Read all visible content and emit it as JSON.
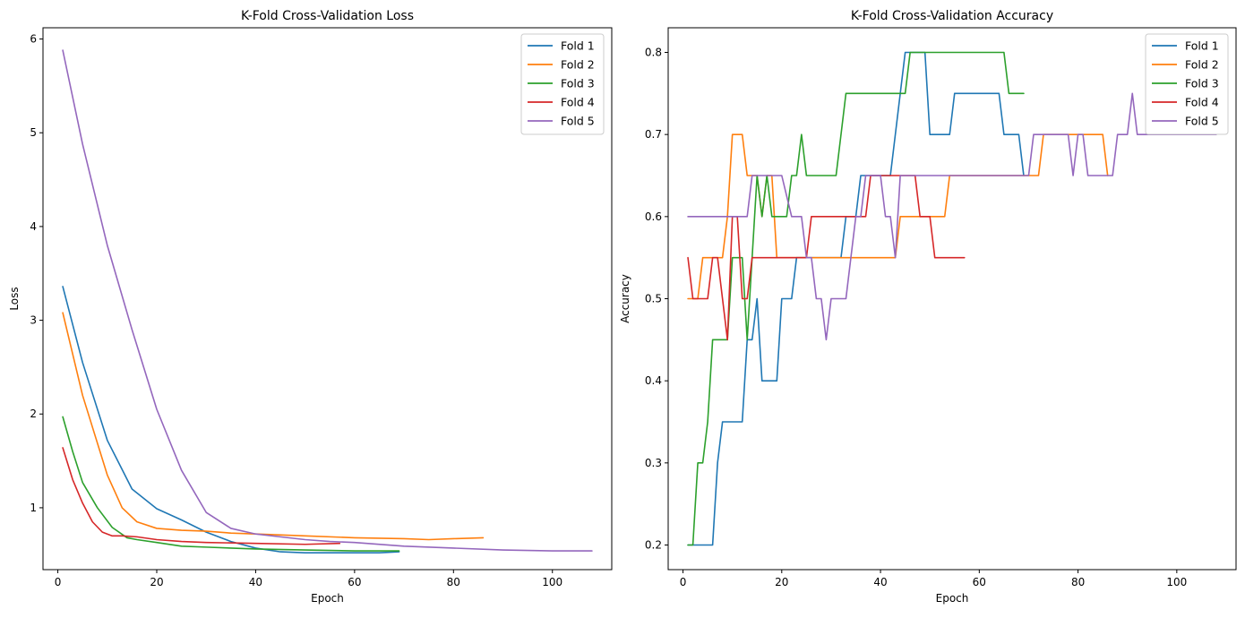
{
  "chart_data": [
    {
      "type": "line",
      "title": "K-Fold Cross-Validation Loss",
      "xlabel": "Epoch",
      "ylabel": "Loss",
      "xlim": [
        -3,
        112
      ],
      "ylim": [
        0.34,
        6.12
      ],
      "xticks": [
        0,
        20,
        40,
        60,
        80,
        100
      ],
      "yticks": [
        1,
        2,
        3,
        4,
        5,
        6
      ],
      "grid": false,
      "legend": "top-right",
      "series": [
        {
          "name": "Fold 1",
          "color": "#1f77b4",
          "x": [
            1,
            5,
            10,
            15,
            20,
            25,
            30,
            35,
            40,
            45,
            50,
            55,
            60,
            65,
            69
          ],
          "y": [
            3.36,
            2.55,
            1.72,
            1.2,
            0.99,
            0.87,
            0.74,
            0.64,
            0.57,
            0.53,
            0.52,
            0.52,
            0.52,
            0.52,
            0.53
          ]
        },
        {
          "name": "Fold 2",
          "color": "#ff7f0e",
          "x": [
            1,
            5,
            10,
            13,
            16,
            20,
            25,
            30,
            35,
            40,
            50,
            60,
            70,
            75,
            80,
            86
          ],
          "y": [
            3.08,
            2.2,
            1.35,
            1.0,
            0.85,
            0.78,
            0.76,
            0.75,
            0.73,
            0.72,
            0.7,
            0.68,
            0.67,
            0.66,
            0.67,
            0.68
          ]
        },
        {
          "name": "Fold 3",
          "color": "#2ca02c",
          "x": [
            1,
            3,
            5,
            8,
            11,
            14,
            16,
            20,
            25,
            30,
            40,
            50,
            60,
            65,
            69
          ],
          "y": [
            1.97,
            1.6,
            1.27,
            1.0,
            0.79,
            0.68,
            0.66,
            0.63,
            0.59,
            0.58,
            0.56,
            0.55,
            0.54,
            0.54,
            0.54
          ]
        },
        {
          "name": "Fold 4",
          "color": "#d62728",
          "x": [
            1,
            3,
            5,
            7,
            9,
            11,
            13,
            16,
            20,
            25,
            30,
            40,
            50,
            57
          ],
          "y": [
            1.64,
            1.3,
            1.05,
            0.85,
            0.74,
            0.7,
            0.7,
            0.69,
            0.66,
            0.64,
            0.63,
            0.62,
            0.61,
            0.62
          ]
        },
        {
          "name": "Fold 5",
          "color": "#9467bd",
          "x": [
            1,
            5,
            10,
            15,
            20,
            25,
            30,
            35,
            40,
            45,
            50,
            55,
            60,
            70,
            80,
            90,
            100,
            108
          ],
          "y": [
            5.88,
            4.88,
            3.8,
            2.9,
            2.05,
            1.4,
            0.95,
            0.78,
            0.72,
            0.69,
            0.66,
            0.64,
            0.63,
            0.59,
            0.57,
            0.55,
            0.54,
            0.54
          ]
        }
      ]
    },
    {
      "type": "line",
      "title": "K-Fold Cross-Validation Accuracy",
      "xlabel": "Epoch",
      "ylabel": "Accuracy",
      "xlim": [
        -3,
        112
      ],
      "ylim": [
        0.17,
        0.83
      ],
      "xticks": [
        0,
        20,
        40,
        60,
        80,
        100
      ],
      "yticks": [
        0.2,
        0.3,
        0.4,
        0.5,
        0.6,
        0.7,
        0.8
      ],
      "grid": false,
      "legend": "top-right",
      "series": [
        {
          "name": "Fold 1",
          "color": "#1f77b4",
          "x": [
            1,
            2,
            3,
            4,
            5,
            6,
            7,
            8,
            9,
            10,
            11,
            12,
            13,
            14,
            15,
            16,
            17,
            18,
            19,
            20,
            21,
            22,
            23,
            24,
            25,
            26,
            27,
            28,
            29,
            30,
            31,
            32,
            33,
            34,
            35,
            36,
            37,
            38,
            39,
            40,
            41,
            42,
            43,
            44,
            45,
            46,
            47,
            48,
            49,
            50,
            51,
            52,
            53,
            54,
            55,
            56,
            57,
            58,
            59,
            60,
            61,
            62,
            63,
            64,
            65,
            66,
            67,
            68,
            69
          ],
          "y": [
            0.2,
            0.2,
            0.2,
            0.2,
            0.2,
            0.2,
            0.3,
            0.35,
            0.35,
            0.35,
            0.35,
            0.35,
            0.45,
            0.45,
            0.5,
            0.4,
            0.4,
            0.4,
            0.4,
            0.5,
            0.5,
            0.5,
            0.55,
            0.55,
            0.55,
            0.55,
            0.55,
            0.55,
            0.55,
            0.55,
            0.55,
            0.55,
            0.6,
            0.6,
            0.6,
            0.65,
            0.65,
            0.65,
            0.65,
            0.65,
            0.65,
            0.65,
            0.7,
            0.75,
            0.8,
            0.8,
            0.8,
            0.8,
            0.8,
            0.7,
            0.7,
            0.7,
            0.7,
            0.7,
            0.75,
            0.75,
            0.75,
            0.75,
            0.75,
            0.75,
            0.75,
            0.75,
            0.75,
            0.75,
            0.7,
            0.7,
            0.7,
            0.7,
            0.65
          ]
        },
        {
          "name": "Fold 2",
          "color": "#ff7f0e",
          "x": [
            1,
            2,
            3,
            4,
            5,
            6,
            7,
            8,
            9,
            10,
            11,
            12,
            13,
            14,
            15,
            16,
            17,
            18,
            19,
            20,
            21,
            22,
            23,
            24,
            25,
            26,
            27,
            28,
            29,
            30,
            31,
            32,
            33,
            34,
            35,
            36,
            37,
            38,
            39,
            40,
            41,
            42,
            43,
            44,
            45,
            46,
            47,
            48,
            49,
            50,
            51,
            52,
            53,
            54,
            55,
            56,
            57,
            58,
            59,
            60,
            61,
            62,
            63,
            64,
            65,
            66,
            67,
            68,
            69,
            70,
            71,
            72,
            73,
            74,
            75,
            76,
            77,
            78,
            79,
            80,
            81,
            82,
            83,
            84,
            85,
            86
          ],
          "y": [
            0.5,
            0.5,
            0.5,
            0.55,
            0.55,
            0.55,
            0.55,
            0.55,
            0.6,
            0.7,
            0.7,
            0.7,
            0.65,
            0.65,
            0.65,
            0.6,
            0.65,
            0.65,
            0.55,
            0.55,
            0.55,
            0.55,
            0.55,
            0.55,
            0.55,
            0.55,
            0.55,
            0.55,
            0.55,
            0.55,
            0.55,
            0.55,
            0.55,
            0.55,
            0.55,
            0.55,
            0.55,
            0.55,
            0.55,
            0.55,
            0.55,
            0.55,
            0.55,
            0.6,
            0.6,
            0.6,
            0.6,
            0.6,
            0.6,
            0.6,
            0.6,
            0.6,
            0.6,
            0.65,
            0.65,
            0.65,
            0.65,
            0.65,
            0.65,
            0.65,
            0.65,
            0.65,
            0.65,
            0.65,
            0.65,
            0.65,
            0.65,
            0.65,
            0.65,
            0.65,
            0.65,
            0.65,
            0.7,
            0.7,
            0.7,
            0.7,
            0.7,
            0.7,
            0.7,
            0.7,
            0.7,
            0.7,
            0.7,
            0.7,
            0.7,
            0.65
          ]
        },
        {
          "name": "Fold 3",
          "color": "#2ca02c",
          "x": [
            1,
            2,
            3,
            4,
            5,
            6,
            7,
            8,
            9,
            10,
            11,
            12,
            13,
            14,
            15,
            16,
            17,
            18,
            19,
            20,
            21,
            22,
            23,
            24,
            25,
            26,
            27,
            28,
            29,
            30,
            31,
            32,
            33,
            34,
            35,
            36,
            37,
            38,
            39,
            40,
            41,
            42,
            43,
            44,
            45,
            46,
            47,
            48,
            49,
            50,
            51,
            52,
            53,
            54,
            55,
            56,
            57,
            58,
            59,
            60,
            61,
            62,
            63,
            64,
            65,
            66,
            67,
            68,
            69
          ],
          "y": [
            0.2,
            0.2,
            0.3,
            0.3,
            0.35,
            0.45,
            0.45,
            0.45,
            0.45,
            0.55,
            0.55,
            0.55,
            0.45,
            0.55,
            0.65,
            0.6,
            0.65,
            0.6,
            0.6,
            0.6,
            0.6,
            0.65,
            0.65,
            0.7,
            0.65,
            0.65,
            0.65,
            0.65,
            0.65,
            0.65,
            0.65,
            0.7,
            0.75,
            0.75,
            0.75,
            0.75,
            0.75,
            0.75,
            0.75,
            0.75,
            0.75,
            0.75,
            0.75,
            0.75,
            0.75,
            0.8,
            0.8,
            0.8,
            0.8,
            0.8,
            0.8,
            0.8,
            0.8,
            0.8,
            0.8,
            0.8,
            0.8,
            0.8,
            0.8,
            0.8,
            0.8,
            0.8,
            0.8,
            0.8,
            0.8,
            0.75,
            0.75,
            0.75,
            0.75
          ]
        },
        {
          "name": "Fold 4",
          "color": "#d62728",
          "x": [
            1,
            2,
            3,
            4,
            5,
            6,
            7,
            8,
            9,
            10,
            11,
            12,
            13,
            14,
            15,
            16,
            17,
            18,
            19,
            20,
            21,
            22,
            23,
            24,
            25,
            26,
            27,
            28,
            29,
            30,
            31,
            32,
            33,
            34,
            35,
            36,
            37,
            38,
            39,
            40,
            41,
            42,
            43,
            44,
            45,
            46,
            47,
            48,
            49,
            50,
            51,
            52,
            53,
            54,
            55,
            56,
            57
          ],
          "y": [
            0.55,
            0.5,
            0.5,
            0.5,
            0.5,
            0.55,
            0.55,
            0.5,
            0.45,
            0.6,
            0.6,
            0.5,
            0.5,
            0.55,
            0.55,
            0.55,
            0.55,
            0.55,
            0.55,
            0.55,
            0.55,
            0.55,
            0.55,
            0.55,
            0.55,
            0.6,
            0.6,
            0.6,
            0.6,
            0.6,
            0.6,
            0.6,
            0.6,
            0.6,
            0.6,
            0.6,
            0.6,
            0.65,
            0.65,
            0.65,
            0.65,
            0.65,
            0.65,
            0.65,
            0.65,
            0.65,
            0.65,
            0.6,
            0.6,
            0.6,
            0.55,
            0.55,
            0.55,
            0.55,
            0.55,
            0.55,
            0.55
          ]
        },
        {
          "name": "Fold 5",
          "color": "#9467bd",
          "x": [
            1,
            5,
            10,
            13,
            14,
            16,
            18,
            20,
            22,
            24,
            25,
            26,
            27,
            28,
            29,
            30,
            31,
            32,
            33,
            34,
            35,
            36,
            37,
            38,
            39,
            40,
            41,
            42,
            43,
            44,
            45,
            50,
            60,
            70,
            71,
            72,
            78,
            79,
            80,
            81,
            82,
            86,
            87,
            88,
            89,
            90,
            91,
            92,
            100,
            108
          ],
          "y": [
            0.6,
            0.6,
            0.6,
            0.6,
            0.65,
            0.65,
            0.65,
            0.65,
            0.6,
            0.6,
            0.55,
            0.55,
            0.5,
            0.5,
            0.45,
            0.5,
            0.5,
            0.5,
            0.5,
            0.55,
            0.6,
            0.6,
            0.65,
            0.65,
            0.65,
            0.65,
            0.6,
            0.6,
            0.55,
            0.65,
            0.65,
            0.65,
            0.65,
            0.65,
            0.7,
            0.7,
            0.7,
            0.65,
            0.7,
            0.7,
            0.65,
            0.65,
            0.65,
            0.7,
            0.7,
            0.7,
            0.75,
            0.7,
            0.7,
            0.7
          ]
        }
      ]
    }
  ]
}
